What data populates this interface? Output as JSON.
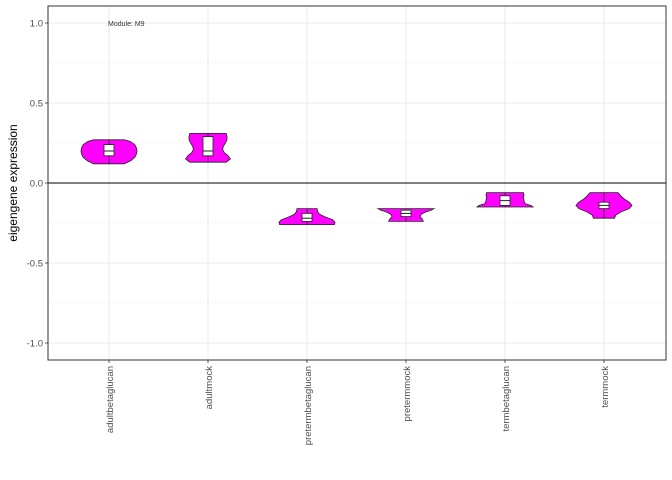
{
  "chart_data": {
    "type": "violin",
    "annotation": "Module: M9",
    "xlabel": "",
    "ylabel": "eigengene expression",
    "ylim": [
      -1.1,
      1.1
    ],
    "yticks": [
      -1.0,
      -0.5,
      0.0,
      0.5,
      1.0
    ],
    "ytick_labels": [
      "-1.0",
      "-0.5",
      "0.0",
      "0.5",
      "1.0"
    ],
    "grid": true,
    "reference_line_y": 0.0,
    "fill_color": "#ff00ff",
    "outline_color": "#222222",
    "categories": [
      "adultbetaglucan",
      "adultmock",
      "pretermbetaglucan",
      "pretermmock",
      "termbetaglucan",
      "termmock"
    ],
    "groups": [
      {
        "name": "adultbetaglucan",
        "min": 0.12,
        "q1": 0.17,
        "median": 0.2,
        "q3": 0.24,
        "max": 0.27,
        "density": [
          [
            0.12,
            0.55
          ],
          [
            0.14,
            0.78
          ],
          [
            0.16,
            0.92
          ],
          [
            0.18,
            0.98
          ],
          [
            0.2,
            1.0
          ],
          [
            0.22,
            0.98
          ],
          [
            0.24,
            0.92
          ],
          [
            0.26,
            0.75
          ],
          [
            0.27,
            0.55
          ]
        ]
      },
      {
        "name": "adultmock",
        "min": 0.13,
        "q1": 0.17,
        "median": 0.2,
        "q3": 0.29,
        "max": 0.31,
        "density": [
          [
            0.13,
            0.65
          ],
          [
            0.15,
            0.8
          ],
          [
            0.17,
            0.72
          ],
          [
            0.19,
            0.58
          ],
          [
            0.21,
            0.52
          ],
          [
            0.23,
            0.55
          ],
          [
            0.25,
            0.62
          ],
          [
            0.27,
            0.68
          ],
          [
            0.29,
            0.68
          ],
          [
            0.31,
            0.65
          ]
        ]
      },
      {
        "name": "pretermbetaglucan",
        "min": -0.26,
        "q1": -0.24,
        "median": -0.22,
        "q3": -0.19,
        "max": -0.16,
        "density": [
          [
            -0.26,
            0.98
          ],
          [
            -0.245,
            1.0
          ],
          [
            -0.23,
            0.92
          ],
          [
            -0.21,
            0.62
          ],
          [
            -0.195,
            0.45
          ],
          [
            -0.18,
            0.38
          ],
          [
            -0.16,
            0.36
          ]
        ]
      },
      {
        "name": "pretermmock",
        "min": -0.24,
        "q1": -0.21,
        "median": -0.19,
        "q3": -0.17,
        "max": -0.16,
        "density": [
          [
            -0.24,
            0.62
          ],
          [
            -0.225,
            0.58
          ],
          [
            -0.21,
            0.5
          ],
          [
            -0.195,
            0.55
          ],
          [
            -0.18,
            0.72
          ],
          [
            -0.17,
            0.9
          ],
          [
            -0.16,
            1.0
          ]
        ]
      },
      {
        "name": "termbetaglucan",
        "min": -0.15,
        "q1": -0.14,
        "median": -0.11,
        "q3": -0.08,
        "max": -0.06,
        "density": [
          [
            -0.15,
            1.0
          ],
          [
            -0.14,
            0.92
          ],
          [
            -0.13,
            0.72
          ],
          [
            -0.11,
            0.68
          ],
          [
            -0.09,
            0.66
          ],
          [
            -0.075,
            0.68
          ],
          [
            -0.06,
            0.66
          ]
        ]
      },
      {
        "name": "termmock",
        "min": -0.22,
        "q1": -0.16,
        "median": -0.14,
        "q3": -0.12,
        "max": -0.06,
        "density": [
          [
            -0.22,
            0.38
          ],
          [
            -0.2,
            0.42
          ],
          [
            -0.18,
            0.62
          ],
          [
            -0.16,
            0.9
          ],
          [
            -0.14,
            1.0
          ],
          [
            -0.12,
            0.9
          ],
          [
            -0.1,
            0.72
          ],
          [
            -0.08,
            0.6
          ],
          [
            -0.06,
            0.5
          ]
        ]
      }
    ]
  }
}
